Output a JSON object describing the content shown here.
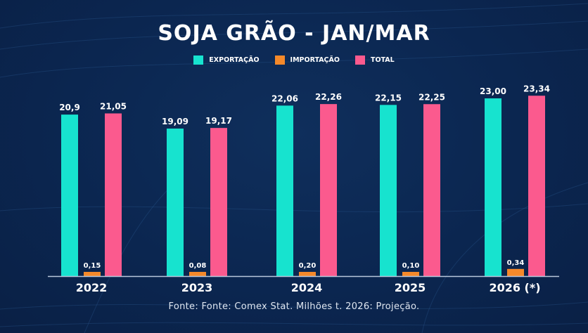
{
  "chart_data": {
    "type": "bar",
    "title": "SOJA GRÃO - JAN/MAR",
    "categories": [
      "2022",
      "2023",
      "2024",
      "2025",
      "2026 (*)"
    ],
    "series": [
      {
        "name": "EXPORTAÇÃO",
        "color": "#17e3cf",
        "values": [
          20.9,
          19.09,
          22.06,
          22.15,
          23.0
        ],
        "labels": [
          "20,9",
          "19,09",
          "22,06",
          "22,15",
          "23,00"
        ]
      },
      {
        "name": "IMPORTAÇÃO",
        "color": "#f5892a",
        "values": [
          0.15,
          0.08,
          0.2,
          0.1,
          0.34
        ],
        "labels": [
          "0,15",
          "0,08",
          "0,20",
          "0,10",
          "0,34"
        ]
      },
      {
        "name": "TOTAL",
        "color": "#fb5a8e",
        "values": [
          21.05,
          19.17,
          22.26,
          22.25,
          23.34
        ],
        "labels": [
          "21,05",
          "19,17",
          "22,26",
          "22,25",
          "23,34"
        ]
      }
    ],
    "xlabel": "",
    "ylabel": "",
    "ylim": [
      0,
      25
    ],
    "grid": false,
    "legend": "top-center",
    "source": "Fonte: Fonte: Comex Stat. Milhões t. 2026: Projeção."
  }
}
